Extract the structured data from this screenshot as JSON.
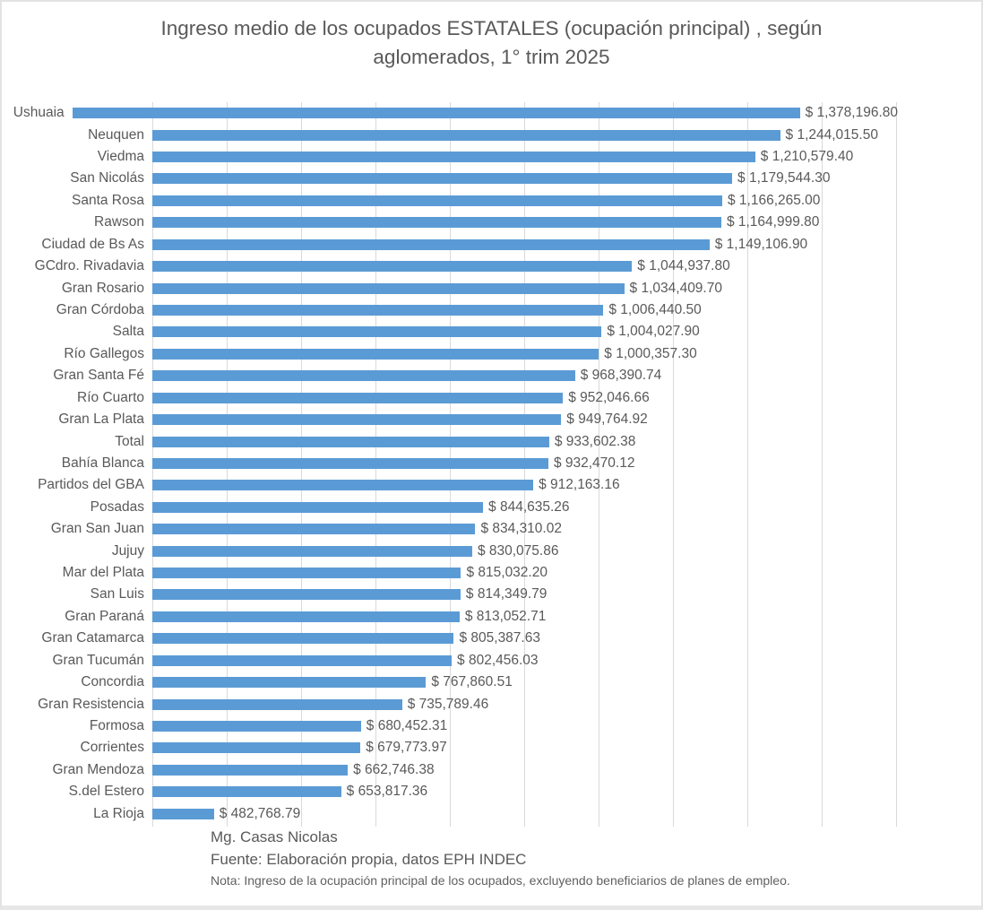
{
  "window": {
    "background": "#ffffff",
    "border_color": "#e3e3e3"
  },
  "chart_data": {
    "type": "bar",
    "orientation": "horizontal",
    "title": "Ingreso medio de los ocupados ESTATALES (ocupación principal) , según aglomerados, 1° trim 2025",
    "title_lines": [
      "Ingreso medio de los ocupados ESTATALES (ocupación principal) , según",
      "aglomerados, 1° trim 2025"
    ],
    "categories": [
      "Ushuaia",
      "Neuquen",
      "Viedma",
      "San Nicolás",
      "Santa Rosa",
      "Rawson",
      "Ciudad de Bs As",
      "GCdro. Rivadavia",
      "Gran Rosario",
      "Gran Córdoba",
      "Salta",
      "Río Gallegos",
      "Gran Santa Fé",
      "Río Cuarto",
      "Gran La Plata",
      "Total",
      "Bahía Blanca",
      "Partidos del GBA",
      "Posadas",
      "Gran San Juan",
      "Jujuy",
      "Mar del Plata",
      "San Luis",
      "Gran Paraná",
      "Gran Catamarca",
      "Gran Tucumán",
      "Concordia",
      "Gran Resistencia",
      "Formosa",
      "Corrientes",
      "Gran Mendoza",
      "S.del Estero",
      "La Rioja"
    ],
    "values": [
      1378196.8,
      1244015.5,
      1210579.4,
      1179544.3,
      1166265.0,
      1164999.8,
      1149106.9,
      1044937.8,
      1034409.7,
      1006440.5,
      1004027.9,
      1000357.3,
      968390.74,
      952046.66,
      949764.92,
      933602.38,
      932470.12,
      912163.16,
      844635.26,
      834310.02,
      830075.86,
      815032.2,
      814349.79,
      813052.71,
      805387.63,
      802456.03,
      767860.51,
      735789.46,
      680452.31,
      679773.97,
      662746.38,
      653817.36,
      482768.79
    ],
    "value_labels": [
      "$ 1,378,196.80",
      "$ 1,244,015.50",
      "$ 1,210,579.40",
      "$ 1,179,544.30",
      "$ 1,166,265.00",
      "$ 1,164,999.80",
      "$ 1,149,106.90",
      "$ 1,044,937.80",
      "$ 1,034,409.70",
      "$ 1,006,440.50",
      "$ 1,004,027.90",
      "$ 1,000,357.30",
      "$ 968,390.74",
      "$ 952,046.66",
      "$ 949,764.92",
      "$ 933,602.38",
      "$ 932,470.12",
      "$ 912,163.16",
      "$ 844,635.26",
      "$ 834,310.02",
      "$ 830,075.86",
      "$ 815,032.20",
      "$ 814,349.79",
      "$ 813,052.71",
      "$ 805,387.63",
      "$ 802,456.03",
      "$ 767,860.51",
      "$ 735,789.46",
      "$ 680,452.31",
      "$ 679,773.97",
      "$ 662,746.38",
      "$ 653,817.36",
      "$ 482,768.79"
    ],
    "xlim": [
      400000,
      1400000
    ],
    "x_major_unit": 100000,
    "xlabel": "",
    "ylabel": "",
    "grid": "vertical",
    "legend": "none",
    "bar_color": "#5b9bd5",
    "gridline_color": "#d9d9d9",
    "text_color": "#595959"
  },
  "footer": {
    "author": "Mg. Casas Nicolas",
    "source": "Fuente: Elaboración propia, datos EPH INDEC",
    "note": "Nota: Ingreso de la ocupación principal de los ocupados, excluyendo beneficiarios de planes de empleo."
  }
}
